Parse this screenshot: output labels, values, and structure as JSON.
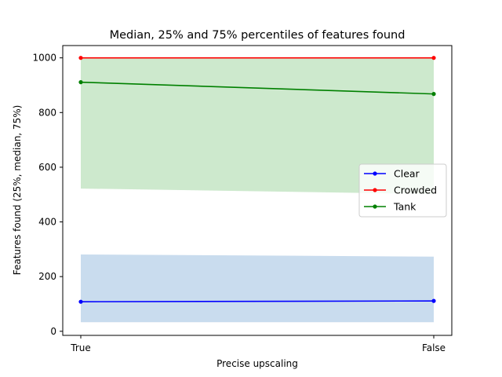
{
  "chart_data": {
    "type": "line",
    "title": "Median, 25% and 75% percentiles of features found",
    "xlabel": "Precise upscaling",
    "ylabel": "Features found (25%, median, 75%)",
    "categories": [
      "True",
      "False"
    ],
    "ylim": [
      -15,
      1045
    ],
    "yticks": [
      0,
      200,
      400,
      600,
      800,
      1000
    ],
    "grid": false,
    "legend_position": "center-right",
    "series": [
      {
        "name": "Clear",
        "color": "#0000ff",
        "band_color": "#c9dcee",
        "median": [
          108,
          111
        ],
        "p25": [
          33,
          33
        ],
        "p75": [
          281,
          273
        ]
      },
      {
        "name": "Crowded",
        "color": "#ff0000",
        "band_color": "#f5d0d0",
        "median": [
          1000,
          1000
        ],
        "p25": [
          1000,
          1000
        ],
        "p75": [
          1000,
          1000
        ]
      },
      {
        "name": "Tank",
        "color": "#008000",
        "band_color": "#cde9cd",
        "median": [
          911,
          868
        ],
        "p25": [
          522,
          502
        ],
        "p75": [
          1000,
          1000
        ]
      }
    ]
  }
}
